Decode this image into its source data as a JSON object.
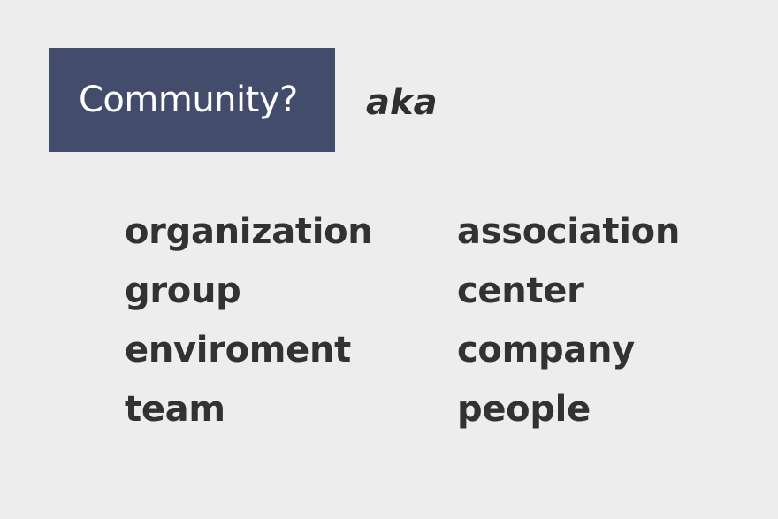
{
  "title": "Community?",
  "aka": "aka",
  "synonyms": {
    "left": [
      "organization",
      "group",
      "enviroment",
      "team"
    ],
    "right": [
      "association",
      "center",
      "company",
      "people"
    ]
  },
  "colors": {
    "background": "#ededed",
    "title_box": "#434c6b",
    "title_text": "#ffffff",
    "body_text": "#323232"
  }
}
